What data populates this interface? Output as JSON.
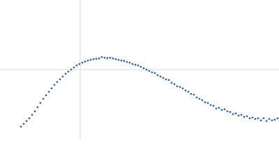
{
  "chart_data": {
    "type": "scatter",
    "x": [
      30,
      34,
      38,
      42,
      46,
      50,
      54,
      58,
      62,
      66,
      70,
      74,
      78,
      82,
      86,
      90,
      94,
      98,
      102,
      106,
      110,
      114,
      118,
      122,
      126,
      130,
      134,
      138,
      142,
      146,
      150,
      154,
      158,
      162,
      166,
      170,
      174,
      178,
      182,
      186,
      190,
      194,
      198,
      202,
      206,
      210,
      214,
      218,
      222,
      226,
      230,
      234,
      238,
      242,
      246,
      250,
      254,
      258,
      262,
      266,
      270,
      274,
      278,
      282,
      286,
      290,
      294,
      298,
      302,
      306,
      310,
      314,
      318,
      322,
      326,
      330,
      334,
      338,
      342,
      346,
      350,
      354,
      358,
      362,
      366,
      370,
      374,
      378,
      382,
      386,
      390,
      394,
      398
    ],
    "values": [
      18,
      22,
      26,
      30,
      35,
      40,
      46,
      52,
      58,
      63,
      68,
      73,
      78,
      82,
      86,
      90,
      94,
      97,
      100,
      103,
      106,
      108,
      110,
      111.5,
      113,
      114,
      115,
      115.5,
      116,
      118,
      117,
      116.5,
      117,
      116,
      115,
      114,
      113,
      112.5,
      111,
      110,
      108,
      107,
      106,
      104,
      102,
      100,
      98,
      96,
      95,
      92,
      90,
      88,
      86,
      85,
      81,
      79,
      76,
      75,
      73,
      70,
      68,
      65,
      64,
      60,
      58,
      56,
      53,
      52,
      49,
      48,
      44,
      45,
      42,
      43,
      40,
      39,
      36,
      37,
      34,
      35,
      32,
      33,
      30,
      31,
      29,
      30,
      27,
      30,
      26,
      29,
      27,
      28,
      30
    ],
    "color": "#3a66b0",
    "xlim": [
      0,
      400
    ],
    "ylim": [
      0,
      200
    ],
    "xticks": [
      115
    ],
    "yticks": [
      100
    ],
    "grid": true
  }
}
